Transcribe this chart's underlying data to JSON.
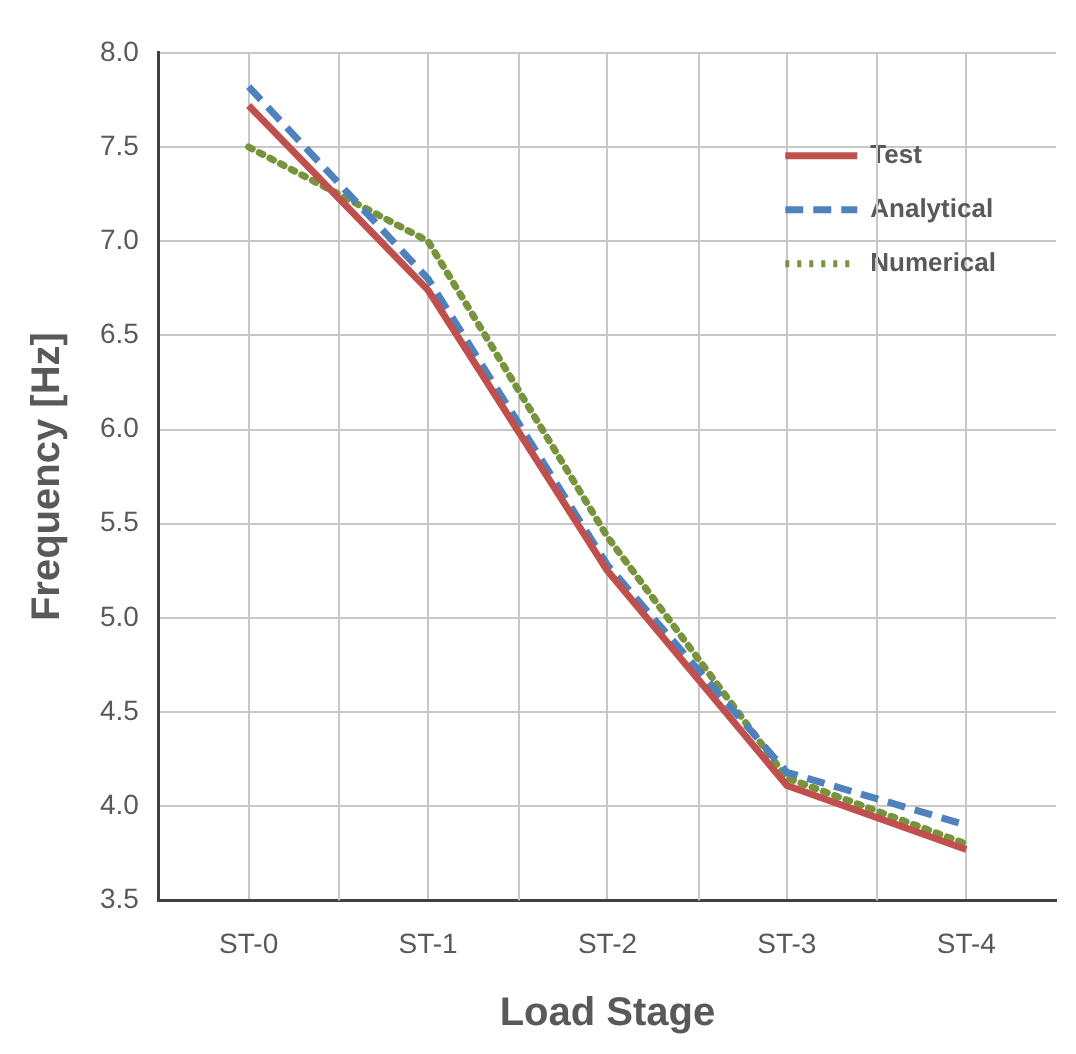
{
  "chart_data": {
    "type": "line",
    "xlabel": "Load Stage",
    "ylabel": "Frequency [Hz]",
    "categories": [
      "ST-0",
      "ST-1",
      "ST-2",
      "ST-3",
      "ST-4"
    ],
    "series": [
      {
        "name": "Test",
        "color": "#c0504d",
        "line_style": "solid",
        "values": [
          7.72,
          6.74,
          5.25,
          4.11,
          3.77
        ]
      },
      {
        "name": "Analytical",
        "color": "#4f81bd",
        "line_style": "dashed",
        "values": [
          7.82,
          6.8,
          5.28,
          4.18,
          3.9
        ]
      },
      {
        "name": "Numerical",
        "color": "#77933c",
        "line_style": "dotted",
        "values": [
          7.5,
          7.0,
          5.43,
          4.15,
          3.8
        ]
      }
    ],
    "ylim": [
      3.5,
      8.0
    ],
    "yticks": [
      {
        "value": 3.5,
        "label": "3.5"
      },
      {
        "value": 4,
        "label": "4.0"
      },
      {
        "value": 4.5,
        "label": "4.5"
      },
      {
        "value": 5,
        "label": "5.0"
      },
      {
        "value": 5.5,
        "label": "5.5"
      },
      {
        "value": 6,
        "label": "6.0"
      },
      {
        "value": 6.5,
        "label": "6.5"
      },
      {
        "value": 7,
        "label": "7.0"
      },
      {
        "value": 7.5,
        "label": "7.5"
      },
      {
        "value": 8,
        "label": "8.0"
      }
    ],
    "grid": true,
    "legend": "top right",
    "marker": "none"
  }
}
